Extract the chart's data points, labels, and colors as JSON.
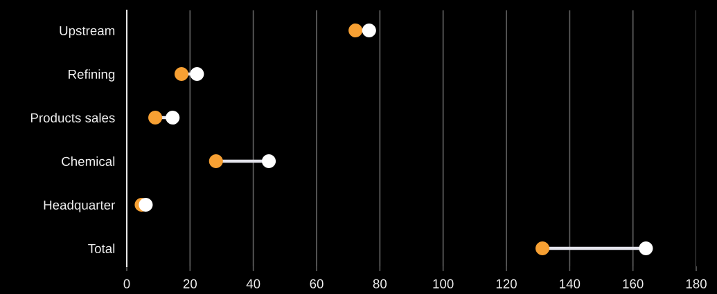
{
  "chart_data": {
    "type": "scatter",
    "orientation": "horizontal",
    "marker": "circle",
    "grid": "x",
    "categories": [
      "Upstream",
      "Refining",
      "Products sales",
      "Chemical",
      "Headquarter",
      "Total"
    ],
    "series": [
      {
        "type": "scatter",
        "color": "#f7a033",
        "values": [
          72.3,
          17.3,
          9.0,
          28.2,
          4.7,
          131.4
        ]
      },
      {
        "type": "scatter",
        "color": "#ffffff",
        "values": [
          76.6,
          22.2,
          14.5,
          44.9,
          6.0,
          164.1
        ]
      }
    ],
    "xlim": [
      0,
      180
    ],
    "xticks": [
      0,
      20,
      40,
      60,
      80,
      100,
      120,
      140,
      160,
      180
    ]
  }
}
